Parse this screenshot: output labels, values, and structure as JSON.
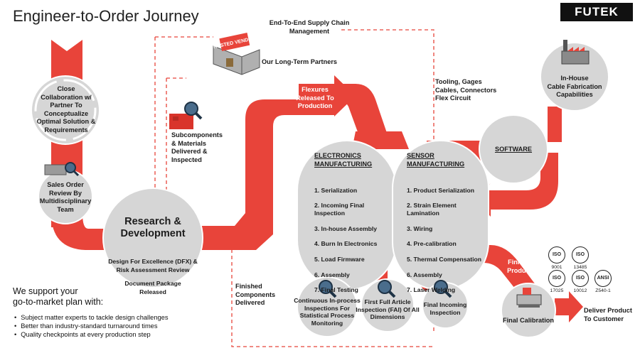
{
  "title": "Engineer-to-Order Journey",
  "brand": "FUTEK",
  "supply_chain_label": "End-To-End Supply Chain Management",
  "vendor_sign": "TRUSTED VENDORS",
  "partners_label": "Our Long-Term Partners",
  "collaboration_label": "Close\nCollaboration w/\nPartner To\nConceptualize\nOptimal Solution &\nRequirements",
  "sales_order_label": "Sales Order\nReview By\nMultidisciplinary\nTeam",
  "subcomponents_label": "Subcomponents\n& Materials\nDelivered &\nInspected",
  "flexures_label": "Flexures\nReleased To\nProduction",
  "tooling_label": "Tooling, Gages\nCables, Connectors\nFlex Circuit",
  "rd": {
    "title": "Research &\nDevelopment",
    "dfx": "Design For Excellence (DFX) &\nRisk Assessment Review",
    "doc": "Document Package\nReleased"
  },
  "electronics": {
    "title": "ELECTRONICS\nMANUFACTURING",
    "steps": [
      "1. Serialization",
      "2. Incoming Final\n    Inspection",
      "3. In-house Assembly",
      "4. Burn In Electronics",
      "5. Load Firmware",
      "6. Assembly",
      "7. Final Testing"
    ]
  },
  "sensor": {
    "title": "SENSOR\nMANUFACTURING",
    "steps": [
      "1. Product Serialization",
      "2. Strain Element\n    Lamination",
      "3. Wiring",
      "4. Pre-calibration",
      "5. Thermal Compensation",
      "6. Assembly",
      "7. Laser Welding"
    ]
  },
  "software_label": "SOFTWARE",
  "cable_label": "In-House\nCable Fabrication\nCapabilities",
  "finished_components_label": "Finished\nComponents\nDelivered",
  "inspection_continuous": "Continuous In-process\nInspections For\nStatistical Process\nMonitoring",
  "inspection_fai": "First Full Article\nInspection (FAI) Of All\nDimensions",
  "inspection_final": "Final Incoming\nInspection",
  "finished_products_label": "Finished\nProducts",
  "final_calibration_label": "Final Calibration",
  "deliver_label": "Deliver Product\nTo Customer",
  "iso_badges": [
    {
      "mark": "ISO",
      "number": "9001"
    },
    {
      "mark": "ISO",
      "number": "13485"
    },
    {
      "mark": "ISO",
      "number": "17025"
    },
    {
      "mark": "ISO",
      "number": "10012"
    },
    {
      "mark": "ANSI",
      "number": "Z540-1"
    }
  ],
  "plan_title": "We support your\ngo-to-market plan with:",
  "plan_bullets": [
    "Subject matter experts to tackle design challenges",
    "Better than industry-standard turnaround times",
    "Quality checkpoints at every production step"
  ],
  "colors": {
    "flow_red": "#e8443a",
    "circle_gray": "#d6d6d6",
    "dashed_red": "#e8443a",
    "ring_gray": "#b5b5b5"
  }
}
